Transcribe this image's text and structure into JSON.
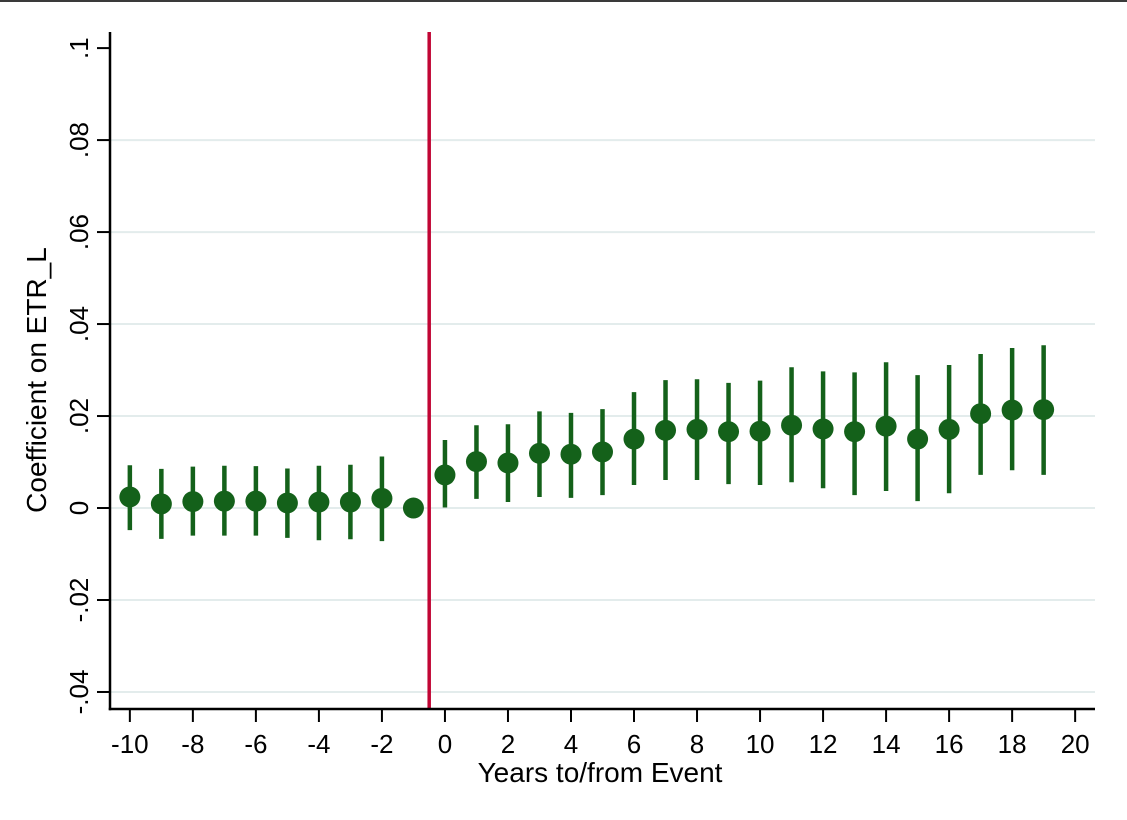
{
  "chart_data": {
    "type": "scatter",
    "subtype": "event-study-coefficient-plot-with-error-bars",
    "title": "",
    "xlabel": "Years to/from Event",
    "ylabel": "Coefficient on ETR_L",
    "xlim": [
      -10.63,
      20.63
    ],
    "ylim": [
      -0.0437,
      0.1035
    ],
    "xtick_values": [
      -10,
      -8,
      -6,
      -4,
      -2,
      0,
      2,
      4,
      6,
      8,
      10,
      12,
      14,
      16,
      18,
      20
    ],
    "xtick_labels": [
      "-10",
      "-8",
      "-6",
      "-4",
      "-2",
      "0",
      "2",
      "4",
      "6",
      "8",
      "10",
      "12",
      "14",
      "16",
      "18",
      "20"
    ],
    "ytick_values": [
      0.1,
      0.08,
      0.06,
      0.04,
      0.02,
      0,
      -0.02,
      -0.04
    ],
    "ytick_labels": [
      ".1",
      ".08",
      ".06",
      ".04",
      ".02",
      "0",
      "-.02",
      "-.04"
    ],
    "grid_values": [
      0.08,
      0.06,
      0.04,
      0.02,
      0,
      -0.02,
      -0.04
    ],
    "grid_on": true,
    "legend_position": "none",
    "y_tick_label_angle_deg": 90,
    "reference_line": {
      "axis": "x",
      "value": -0.5
    },
    "series": [
      {
        "name": "coefficient",
        "x": [
          -10,
          -9,
          -8,
          -7,
          -6,
          -5,
          -4,
          -3,
          -2,
          -1,
          0,
          1,
          2,
          3,
          4,
          5,
          6,
          7,
          8,
          9,
          10,
          11,
          12,
          13,
          14,
          15,
          16,
          17,
          18,
          19
        ],
        "y": [
          0.0024,
          0.0009,
          0.0014,
          0.0015,
          0.0015,
          0.0011,
          0.0013,
          0.0013,
          0.0021,
          0.0,
          0.0072,
          0.0101,
          0.0098,
          0.0119,
          0.0117,
          0.0122,
          0.015,
          0.0169,
          0.0171,
          0.0166,
          0.0167,
          0.018,
          0.0172,
          0.0166,
          0.0178,
          0.015,
          0.0171,
          0.0205,
          0.0213,
          0.0214
        ],
        "ci_low": [
          -0.0048,
          -0.0067,
          -0.006,
          -0.006,
          -0.006,
          -0.0065,
          -0.007,
          -0.0068,
          -0.0072,
          0.0,
          0.0001,
          0.002,
          0.0013,
          0.0024,
          0.0022,
          0.0028,
          0.005,
          0.0061,
          0.0061,
          0.0052,
          0.005,
          0.0056,
          0.0043,
          0.0028,
          0.0037,
          0.0015,
          0.0032,
          0.0072,
          0.0082,
          0.0072
        ],
        "ci_high": [
          0.0093,
          0.0085,
          0.009,
          0.0092,
          0.0091,
          0.0086,
          0.0092,
          0.0094,
          0.0112,
          0.0,
          0.0148,
          0.018,
          0.0182,
          0.021,
          0.0207,
          0.0215,
          0.0252,
          0.0278,
          0.028,
          0.0272,
          0.0277,
          0.0306,
          0.0297,
          0.0295,
          0.0317,
          0.0289,
          0.0311,
          0.0335,
          0.0348,
          0.0354
        ]
      }
    ],
    "colors": {
      "marker": "#14611a",
      "ci_bar": "#14611a",
      "reference_line": "#c10534",
      "gridline": "#e3ecec",
      "axis": "#000000",
      "background": "#ffffff"
    }
  }
}
